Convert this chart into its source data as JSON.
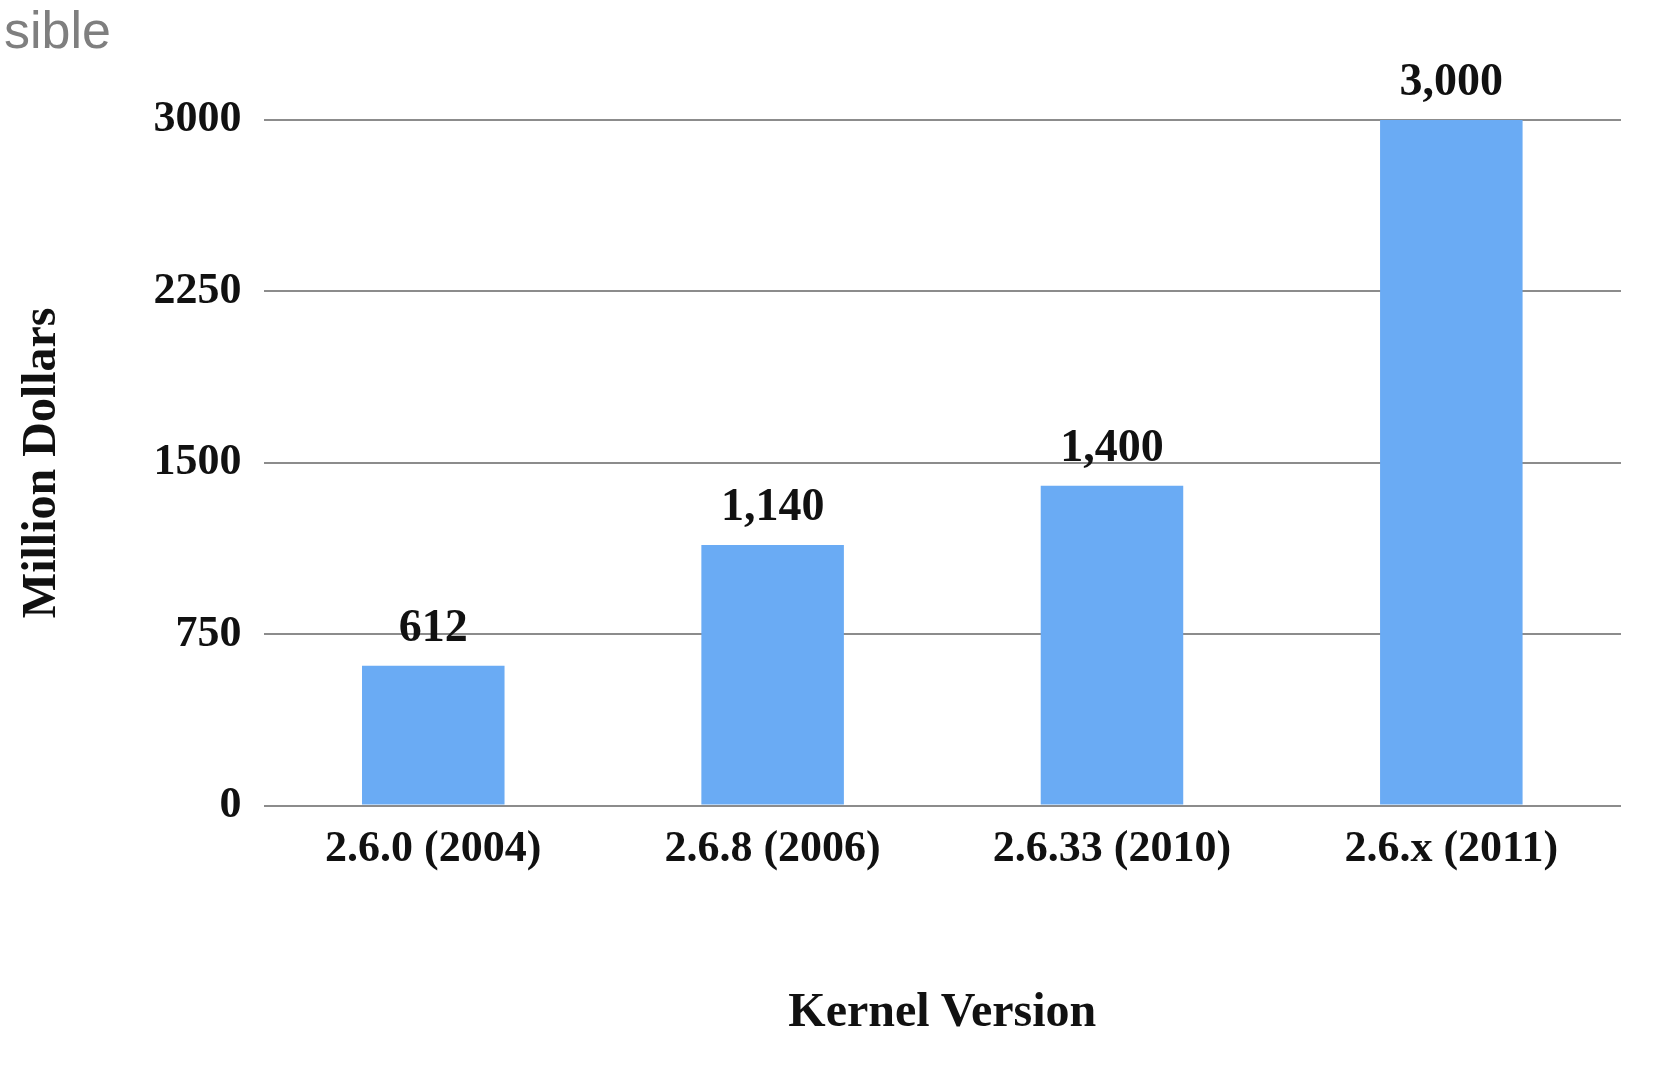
{
  "chart_data": {
    "type": "bar",
    "xlabel": "Kernel Version",
    "ylabel": "Million Dollars",
    "categories": [
      "2.6.0 (2004)",
      "2.6.8 (2006)",
      "2.6.33 (2010)",
      "2.6.x (2011)"
    ],
    "values": [
      612,
      1140,
      1400,
      3000
    ],
    "color": "#6aabf4",
    "value_labels": [
      "612",
      "1,140",
      "1,400",
      "3,000"
    ],
    "ylim": [
      0,
      3000
    ],
    "yticks": [
      0,
      750,
      1500,
      2250,
      3000
    ],
    "grid": "y",
    "legend": false,
    "annotations": [
      "sible"
    ]
  }
}
